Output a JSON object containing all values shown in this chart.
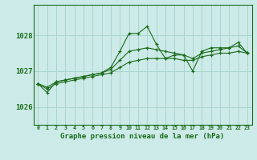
{
  "title": "Graphe pression niveau de la mer (hPa)",
  "background_color": "#cceae7",
  "grid_color": "#aad4d0",
  "line_color": "#1a6b1a",
  "x_labels": [
    "0",
    "1",
    "2",
    "3",
    "4",
    "5",
    "6",
    "7",
    "8",
    "9",
    "10",
    "11",
    "12",
    "13",
    "14",
    "15",
    "16",
    "17",
    "18",
    "19",
    "20",
    "21",
    "22",
    "23"
  ],
  "yticks": [
    1026,
    1027,
    1028
  ],
  "ylim": [
    1025.5,
    1028.85
  ],
  "xlim": [
    -0.5,
    23.5
  ],
  "series": [
    [
      1026.65,
      1026.4,
      1026.7,
      1026.75,
      1026.8,
      1026.85,
      1026.9,
      1026.95,
      1027.1,
      1027.55,
      1028.05,
      1028.05,
      1028.25,
      1027.75,
      1027.35,
      1027.45,
      1027.45,
      1027.0,
      1027.55,
      1027.65,
      1027.65,
      1027.65,
      1027.8,
      1027.5
    ],
    [
      1026.65,
      1026.55,
      1026.7,
      1026.75,
      1026.8,
      1026.85,
      1026.9,
      1026.95,
      1027.05,
      1027.3,
      1027.55,
      1027.6,
      1027.65,
      1027.6,
      1027.55,
      1027.5,
      1027.45,
      1027.35,
      1027.5,
      1027.55,
      1027.6,
      1027.65,
      1027.7,
      1027.5
    ],
    [
      1026.65,
      1026.5,
      1026.65,
      1026.7,
      1026.75,
      1026.8,
      1026.85,
      1026.9,
      1026.95,
      1027.1,
      1027.25,
      1027.3,
      1027.35,
      1027.35,
      1027.35,
      1027.35,
      1027.3,
      1027.3,
      1027.4,
      1027.45,
      1027.5,
      1027.5,
      1027.55,
      1027.5
    ]
  ]
}
